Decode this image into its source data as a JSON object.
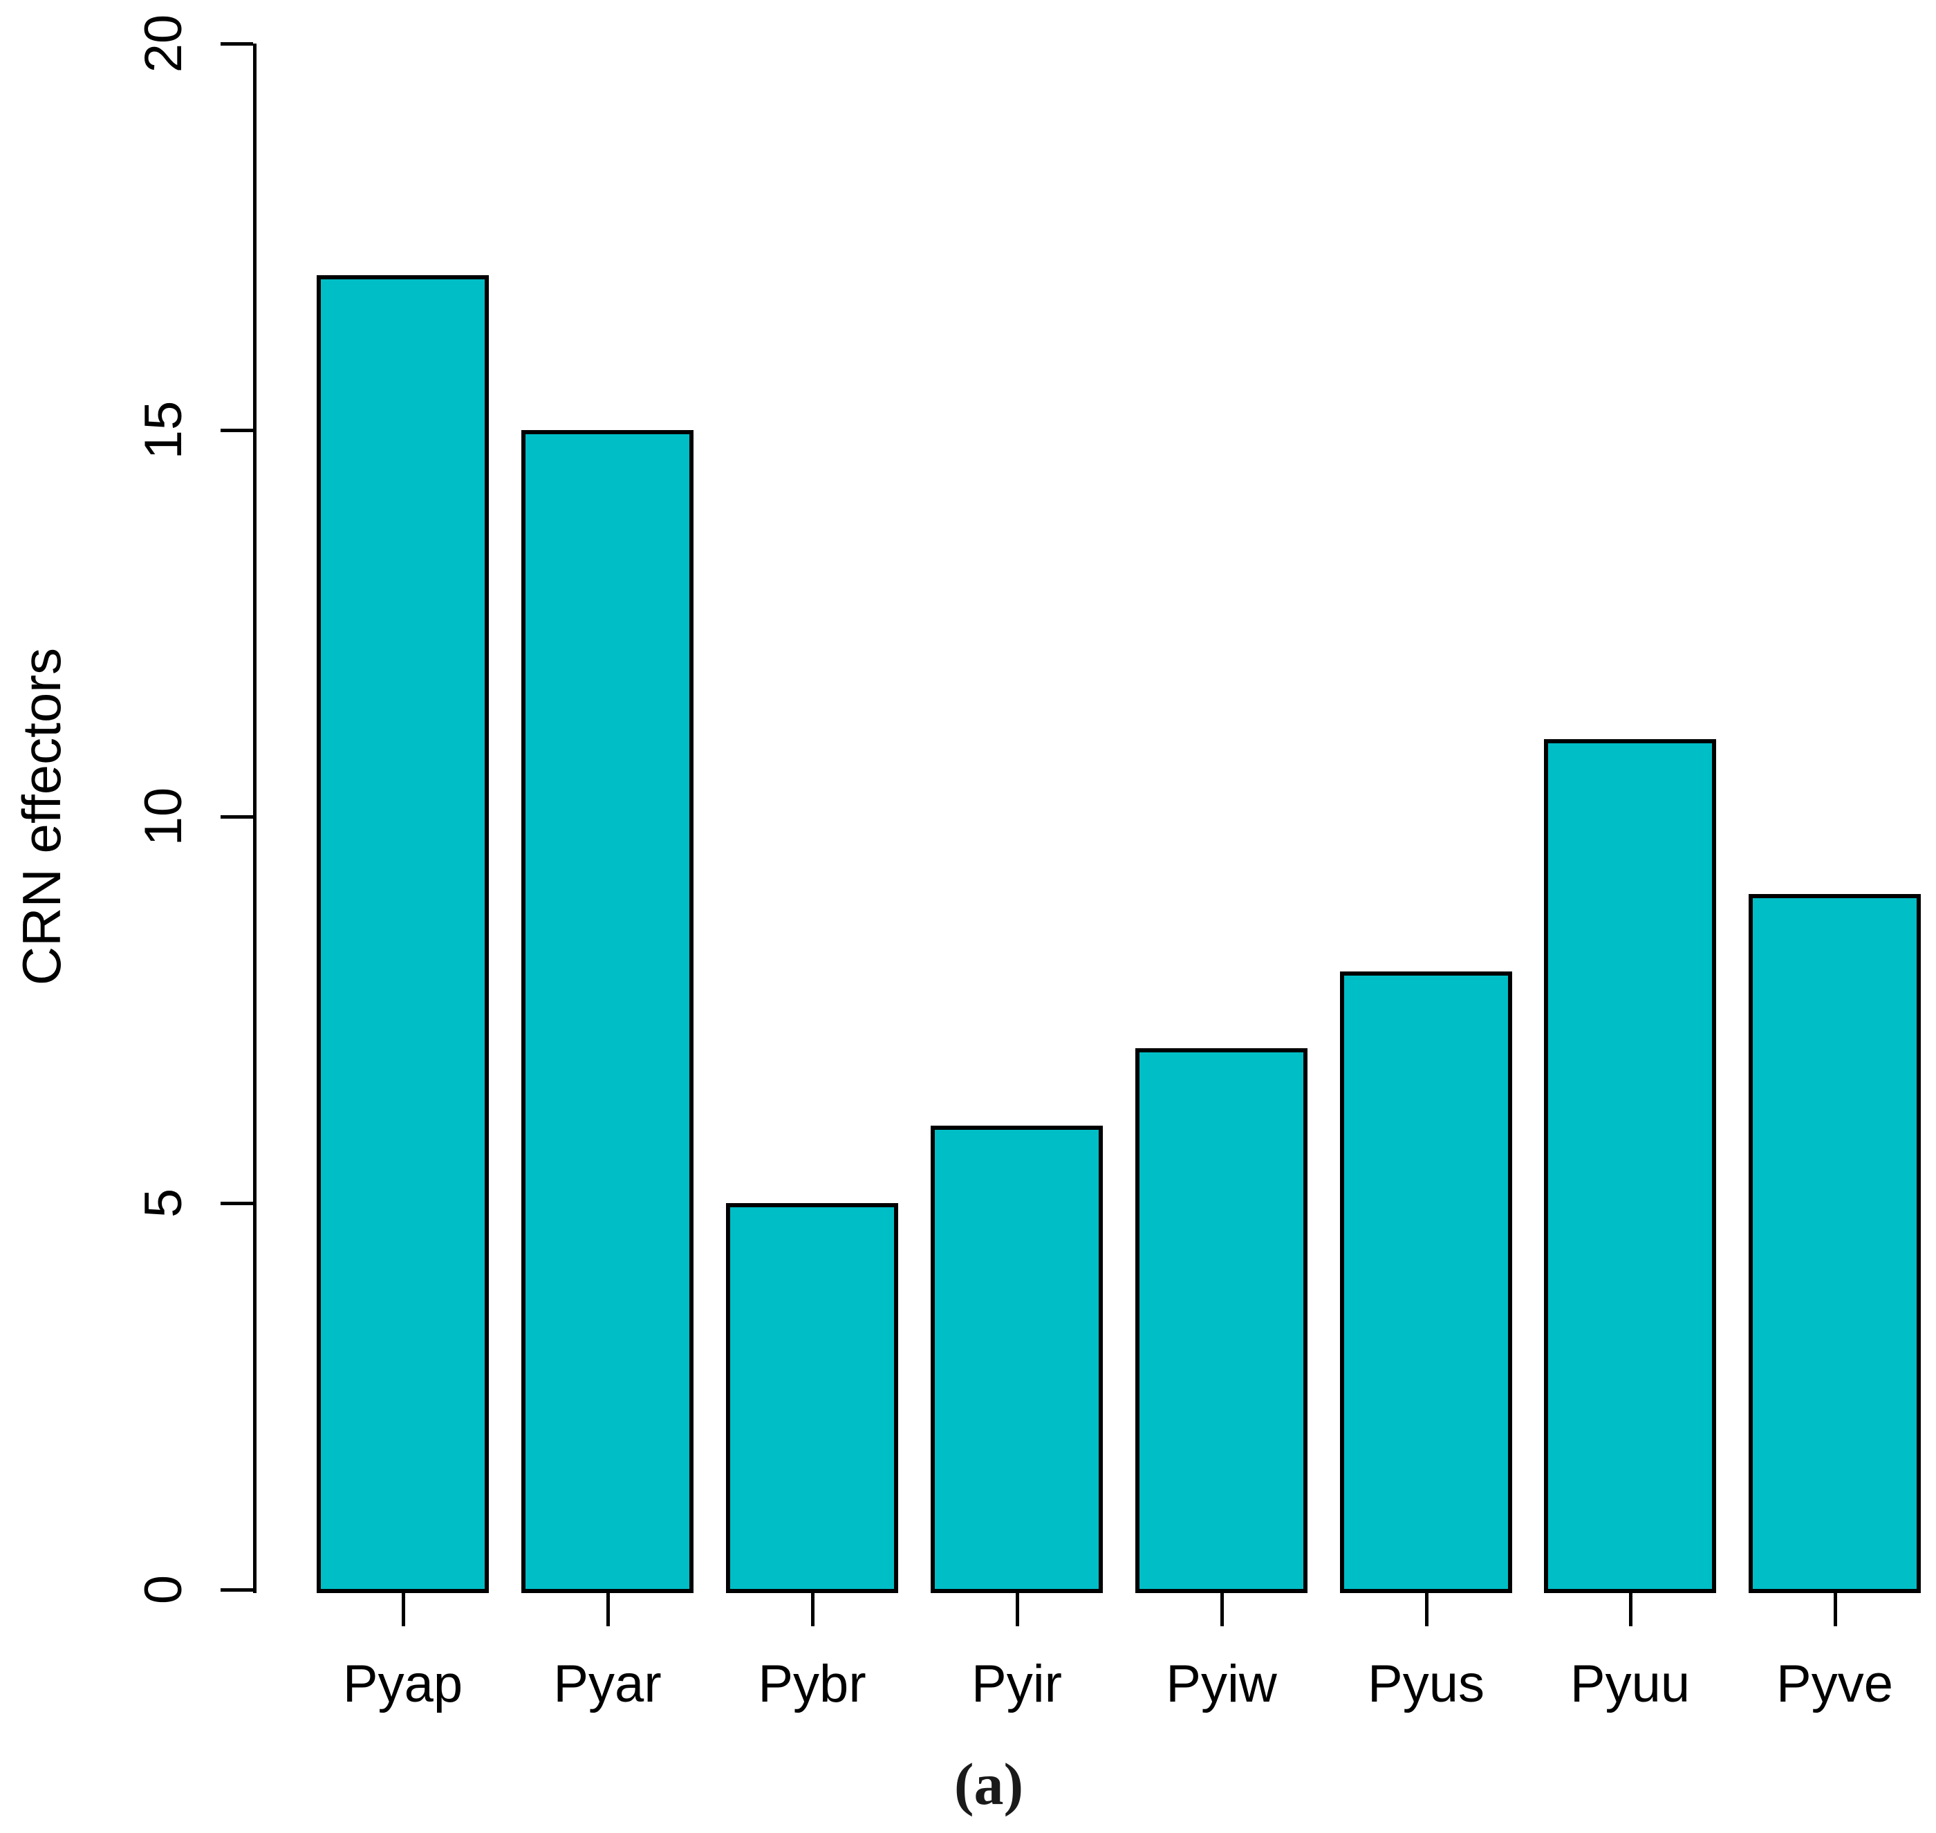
{
  "chart_data": {
    "type": "bar",
    "categories": [
      "Pyap",
      "Pyar",
      "Pybr",
      "Pyir",
      "Pyiw",
      "Pyus",
      "Pyuu",
      "Pyve"
    ],
    "values": [
      17,
      15,
      5,
      6,
      7,
      8,
      11,
      9
    ],
    "title": "",
    "xlabel": "",
    "ylabel": "CRN effectors",
    "ylim": [
      0,
      20
    ],
    "yticks": [
      0,
      5,
      10,
      15,
      20
    ],
    "grid": false,
    "legend": "none",
    "bar_color": "#00bec6",
    "bar_border_color": "#000000",
    "axis_color": "#000000",
    "caption": "(a)"
  }
}
